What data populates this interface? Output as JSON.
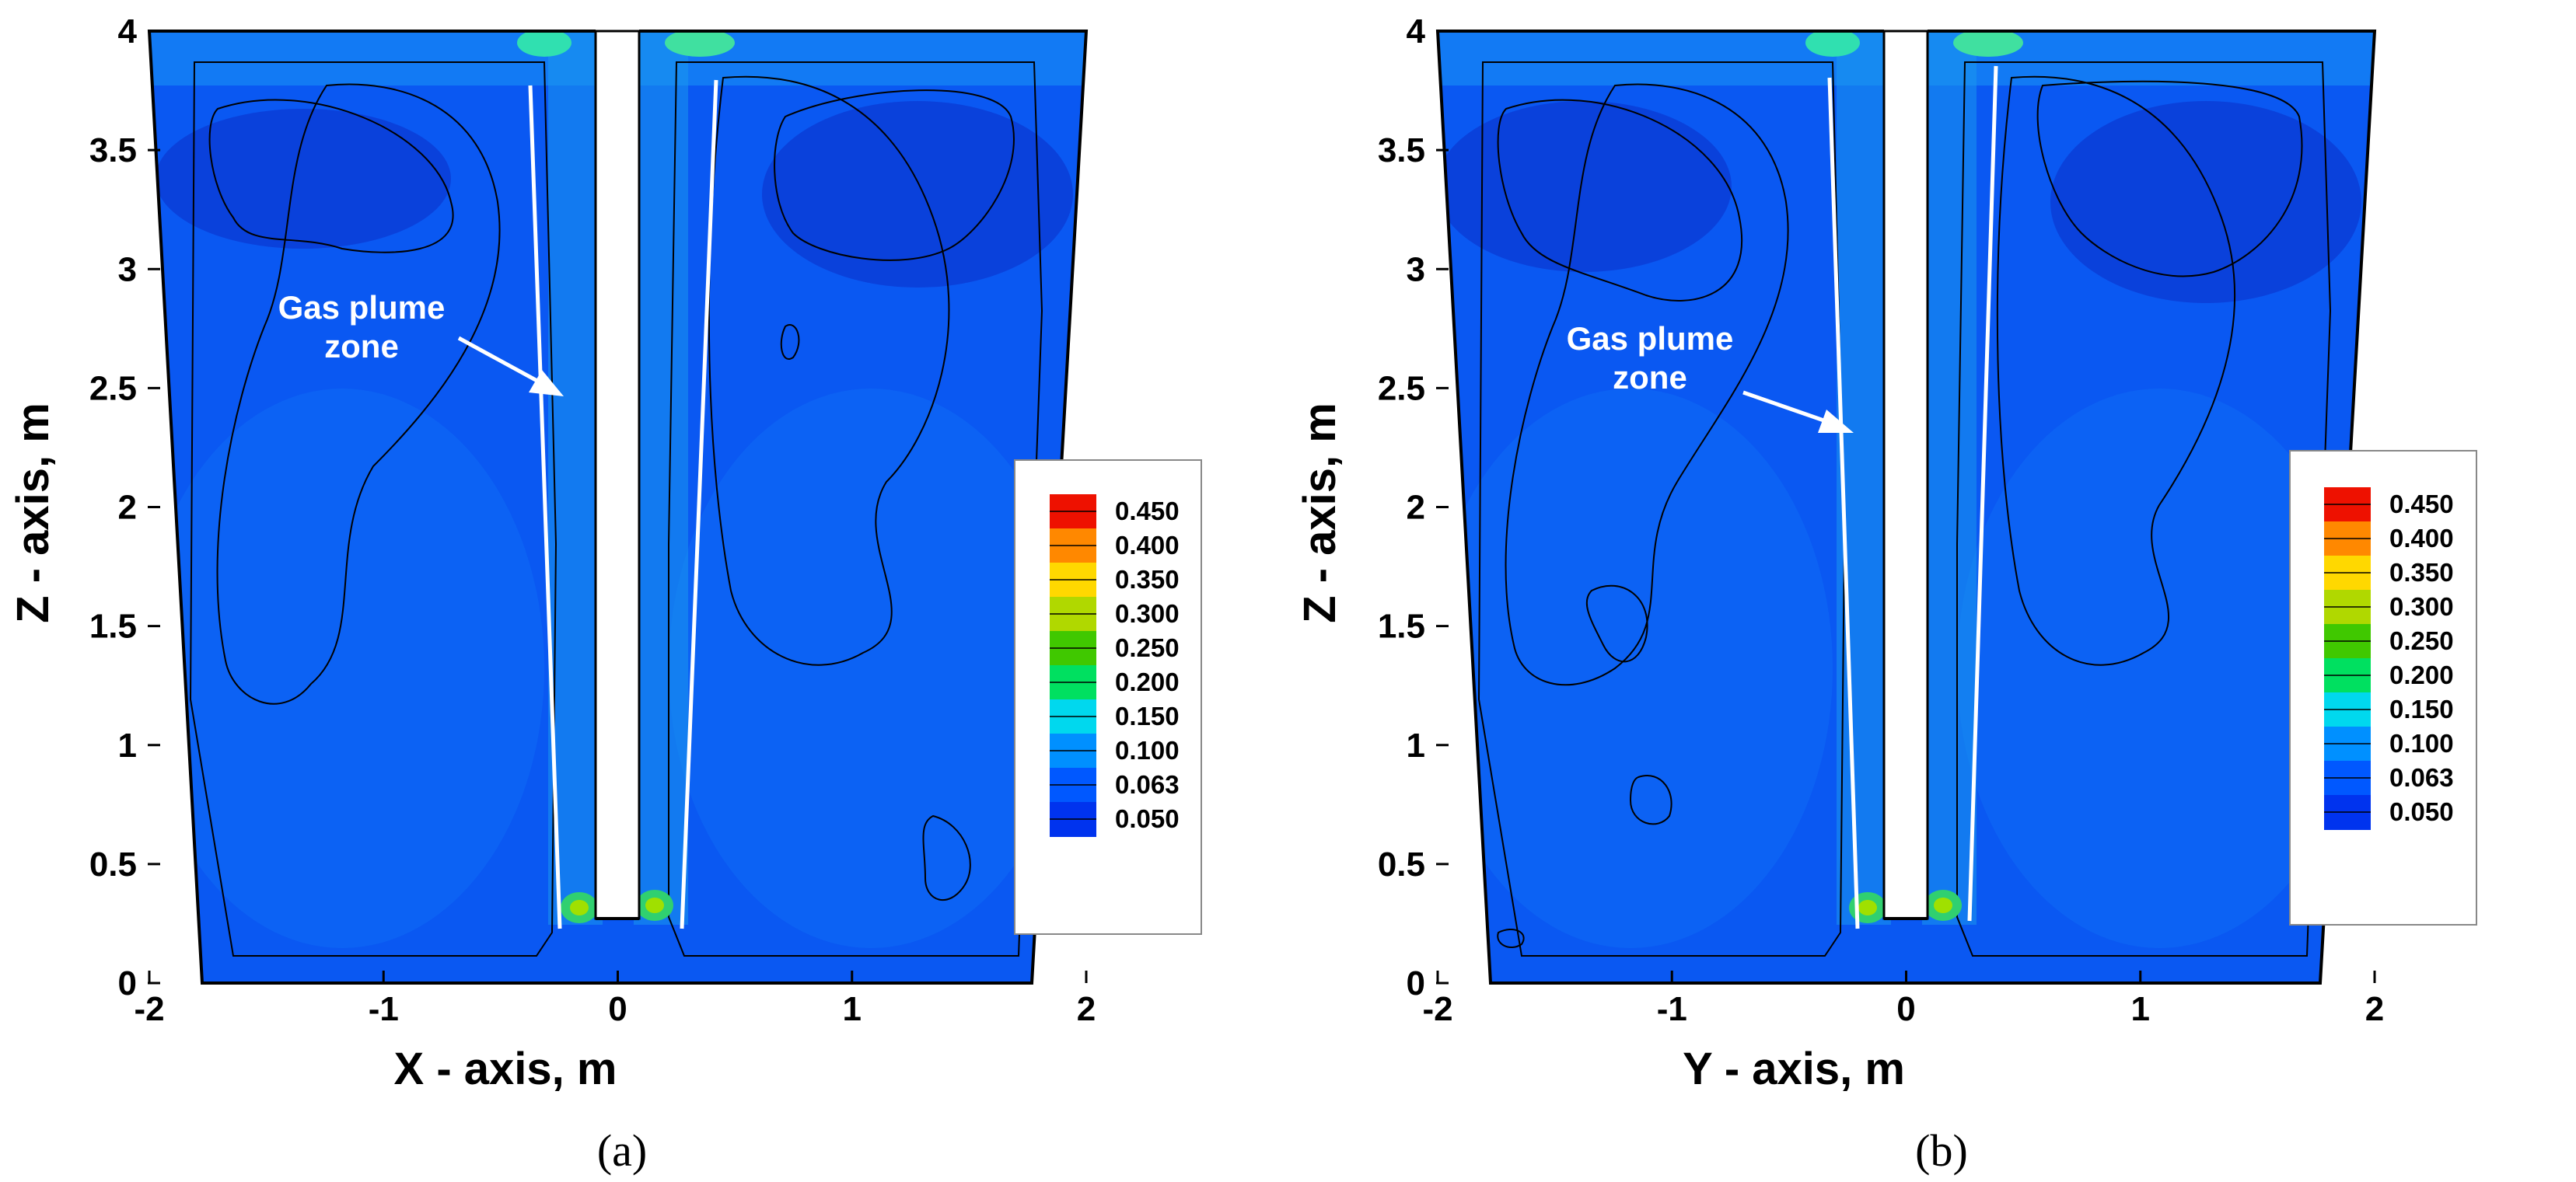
{
  "chart_data": [
    {
      "type": "heatmap",
      "panel_caption": "(a)",
      "xlabel": "X - axis, m",
      "ylabel": "Z - axis, m",
      "xlim": [
        -2,
        2
      ],
      "ylim": [
        0,
        4
      ],
      "xticks": [
        "-2",
        "-1",
        "0",
        "1",
        "2"
      ],
      "yticks": [
        "0",
        "0.5",
        "1",
        "1.5",
        "2",
        "2.5",
        "3",
        "3.5",
        "4"
      ],
      "annotation": [
        "Gas plume",
        "zone"
      ],
      "legend_levels": [
        "0.450",
        "0.400",
        "0.350",
        "0.300",
        "0.250",
        "0.200",
        "0.150",
        "0.100",
        "0.063",
        "0.050"
      ],
      "grid": false,
      "legend_position": "right"
    },
    {
      "type": "heatmap",
      "panel_caption": "(b)",
      "xlabel": "Y - axis, m",
      "ylabel": "Z - axis, m",
      "xlim": [
        -2,
        2
      ],
      "ylim": [
        0,
        4
      ],
      "xticks": [
        "-2",
        "-1",
        "0",
        "1",
        "2"
      ],
      "yticks": [
        "0",
        "0.5",
        "1",
        "1.5",
        "2",
        "2.5",
        "3",
        "3.5",
        "4"
      ],
      "annotation": [
        "Gas plume",
        "zone"
      ],
      "legend_levels": [
        "0.450",
        "0.400",
        "0.350",
        "0.300",
        "0.250",
        "0.200",
        "0.150",
        "0.100",
        "0.063",
        "0.050"
      ],
      "grid": false,
      "legend_position": "right"
    }
  ],
  "colorscale": [
    "#0033ee",
    "#0058ff",
    "#0090ff",
    "#00d8ee",
    "#00e060",
    "#40c800",
    "#b0d800",
    "#ffd800",
    "#ff8800",
    "#ee1100"
  ]
}
